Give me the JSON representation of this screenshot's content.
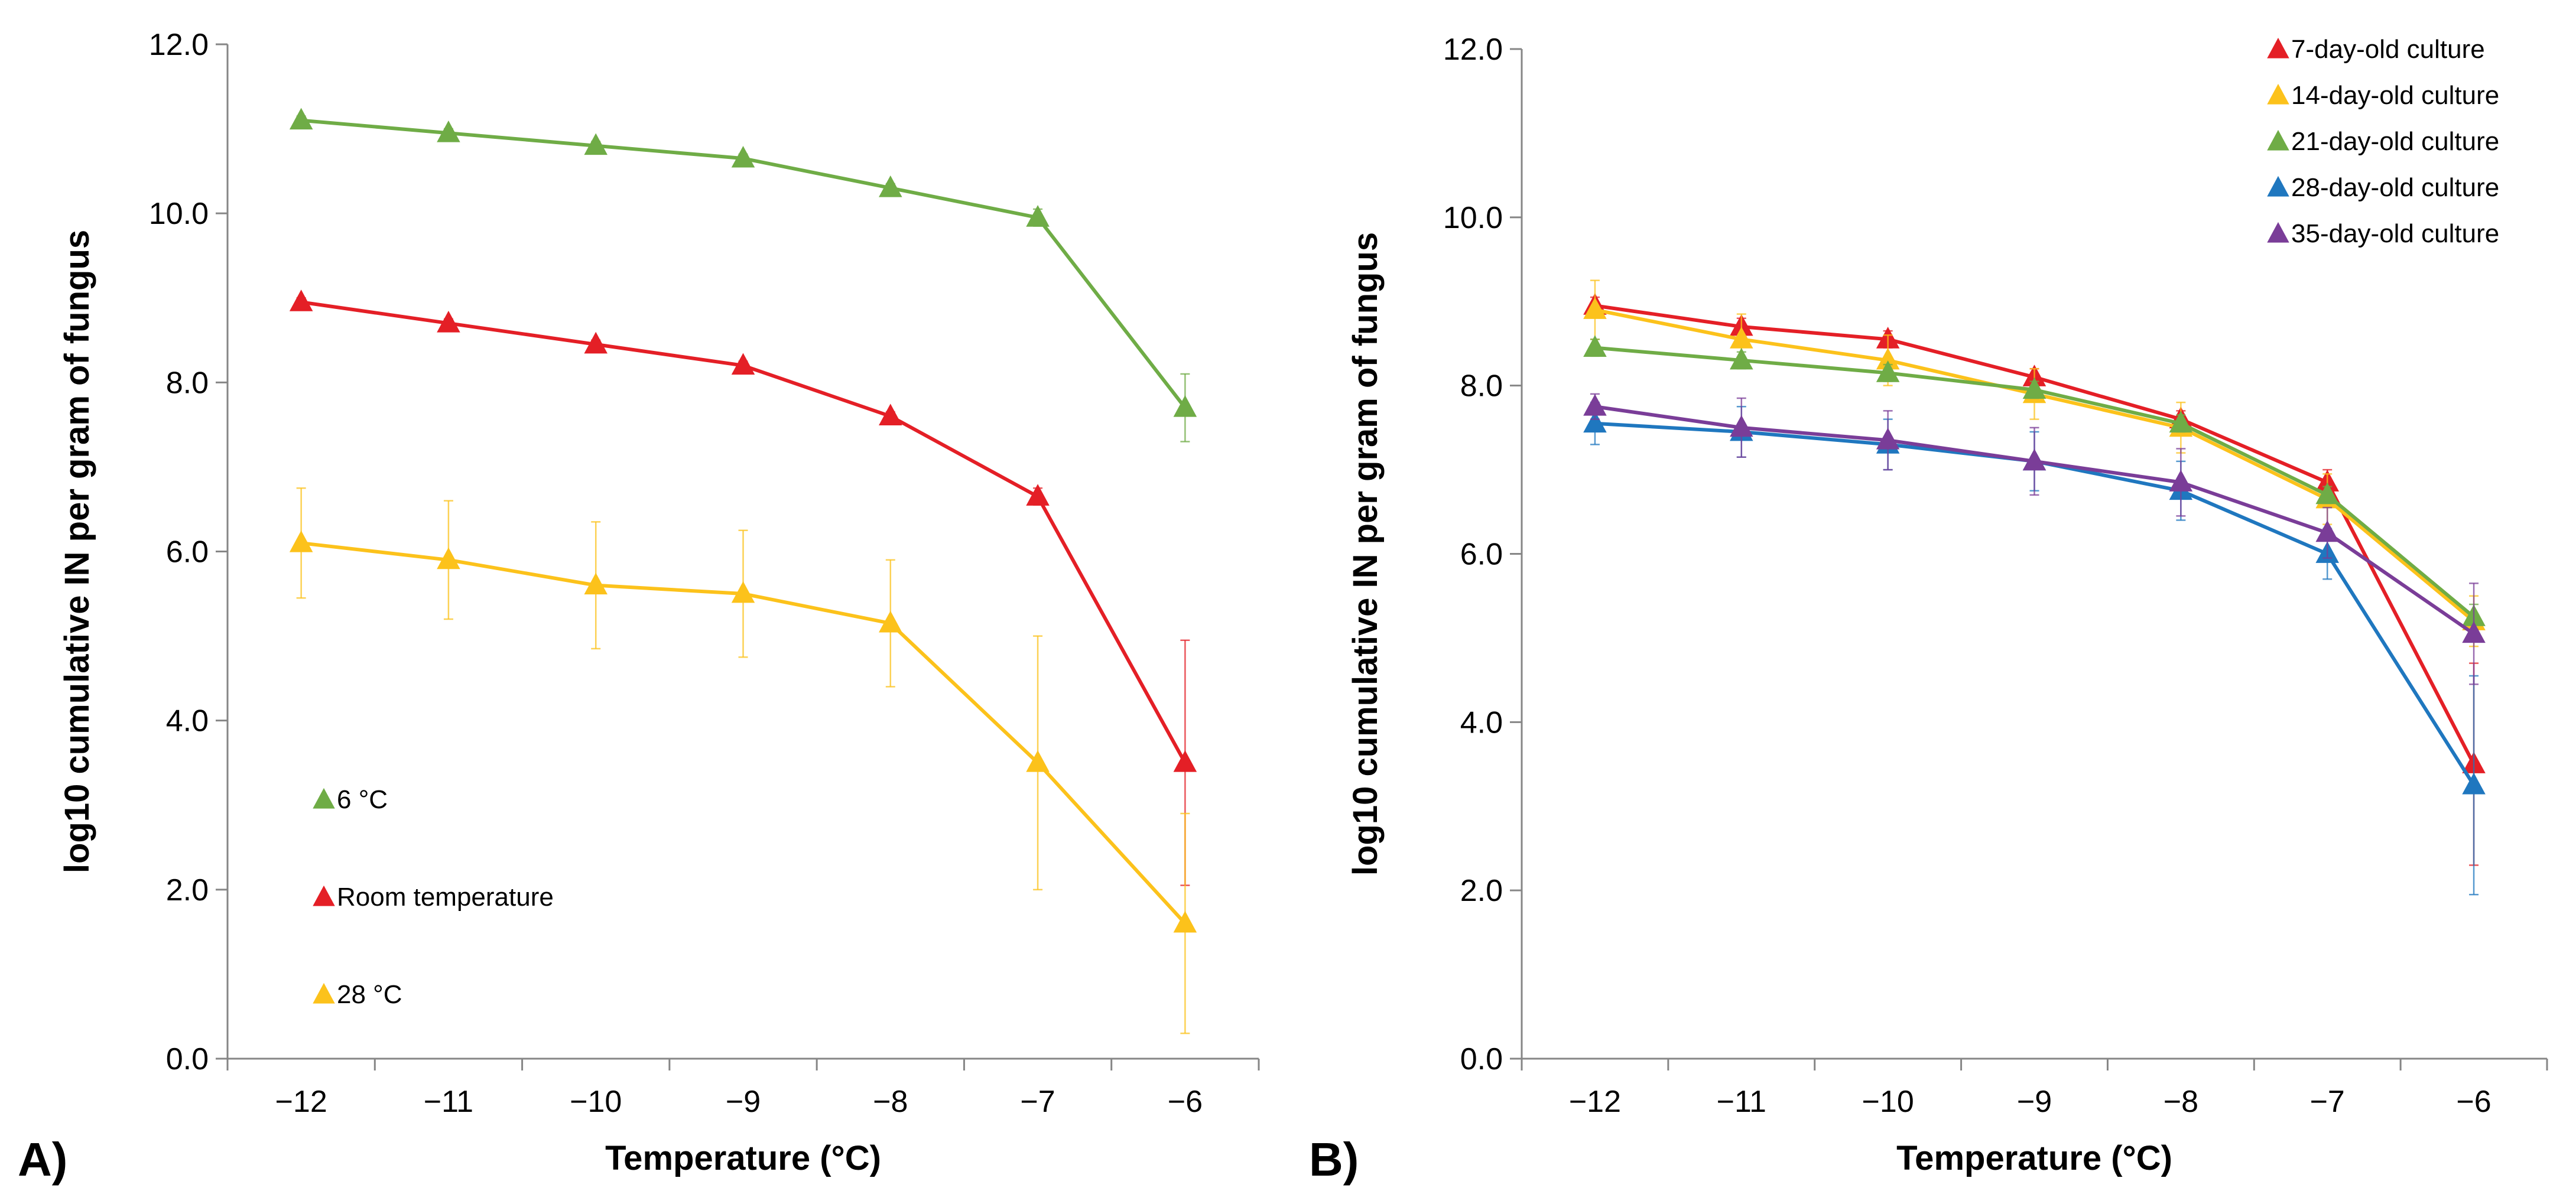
{
  "chart_data": [
    {
      "type": "line",
      "panel_label": "A)",
      "xlabel": "Temperature (°C)",
      "ylabel": "log10 cumulative IN per gram of fungus",
      "x": [
        -12,
        -11,
        -10,
        -9,
        -8,
        -7,
        -6
      ],
      "x_tick_labels": [
        "−12",
        "−11",
        "−10",
        "−9",
        "−8",
        "−7",
        "−6"
      ],
      "xlim": [
        -12.5,
        -5.5
      ],
      "ylim": [
        0,
        12
      ],
      "y_tick_labels": [
        "0.0",
        "2.0",
        "4.0",
        "6.0",
        "8.0",
        "10.0",
        "12.0"
      ],
      "y_ticks": [
        0,
        2,
        4,
        6,
        8,
        10,
        12
      ],
      "grid": false,
      "legend_position": "left-inside",
      "series": [
        {
          "name": "6 °C",
          "color": "#6fac46",
          "values": [
            11.1,
            10.95,
            10.8,
            10.65,
            10.3,
            9.95,
            7.7
          ],
          "err": [
            0.05,
            0.05,
            0.05,
            0.05,
            0.05,
            0.1,
            0.4
          ]
        },
        {
          "name": "Room temperature",
          "color": "#e41f26",
          "values": [
            8.95,
            8.7,
            8.45,
            8.2,
            7.6,
            6.65,
            3.5
          ],
          "err": [
            0.05,
            0.05,
            0.05,
            0.05,
            0.05,
            0.1,
            1.45
          ]
        },
        {
          "name": "28 °C",
          "color": "#fcc21b",
          "values": [
            6.1,
            5.9,
            5.6,
            5.5,
            5.15,
            3.5,
            1.6
          ],
          "err": [
            0.65,
            0.7,
            0.75,
            0.75,
            0.75,
            1.5,
            1.3
          ]
        }
      ]
    },
    {
      "type": "line",
      "panel_label": "B)",
      "xlabel": "Temperature (°C)",
      "ylabel": "log10 cumulative IN per gram of fungus",
      "x": [
        -12,
        -11,
        -10,
        -9,
        -8,
        -7,
        -6
      ],
      "x_tick_labels": [
        "−12",
        "−11",
        "−10",
        "−9",
        "−8",
        "−7",
        "−6"
      ],
      "xlim": [
        -12.5,
        -5.5
      ],
      "ylim": [
        0,
        12
      ],
      "y_tick_labels": [
        "0.0",
        "2.0",
        "4.0",
        "6.0",
        "8.0",
        "10.0",
        "12.0"
      ],
      "y_ticks": [
        0,
        2,
        4,
        6,
        8,
        10,
        12
      ],
      "grid": false,
      "legend_position": "top-right",
      "series": [
        {
          "name": "7-day-old culture",
          "color": "#e41f26",
          "values": [
            8.95,
            8.7,
            8.55,
            8.1,
            7.6,
            6.85,
            3.5
          ],
          "err": [
            0.1,
            0.1,
            0.1,
            0.1,
            0.1,
            0.15,
            1.2
          ]
        },
        {
          "name": "14-day-old culture",
          "color": "#fcc21b",
          "values": [
            8.9,
            8.55,
            8.3,
            7.9,
            7.5,
            6.65,
            5.2
          ],
          "err": [
            0.35,
            0.3,
            0.3,
            0.3,
            0.3,
            0.3,
            0.3
          ]
        },
        {
          "name": "21-day-old culture",
          "color": "#6fac46",
          "values": [
            8.45,
            8.3,
            8.15,
            7.95,
            7.55,
            6.7,
            5.25
          ],
          "err": [
            0.1,
            0.1,
            0.1,
            0.1,
            0.1,
            0.1,
            0.15
          ]
        },
        {
          "name": "28-day-old culture",
          "color": "#1f77bf",
          "values": [
            7.55,
            7.45,
            7.3,
            7.1,
            6.75,
            6.0,
            3.25
          ],
          "err": [
            0.25,
            0.3,
            0.3,
            0.35,
            0.35,
            0.3,
            1.3
          ]
        },
        {
          "name": "35-day-old culture",
          "color": "#7a3d98",
          "values": [
            7.75,
            7.5,
            7.35,
            7.1,
            6.85,
            6.25,
            5.05
          ],
          "err": [
            0.15,
            0.35,
            0.35,
            0.4,
            0.4,
            0.3,
            0.6
          ]
        }
      ]
    }
  ]
}
